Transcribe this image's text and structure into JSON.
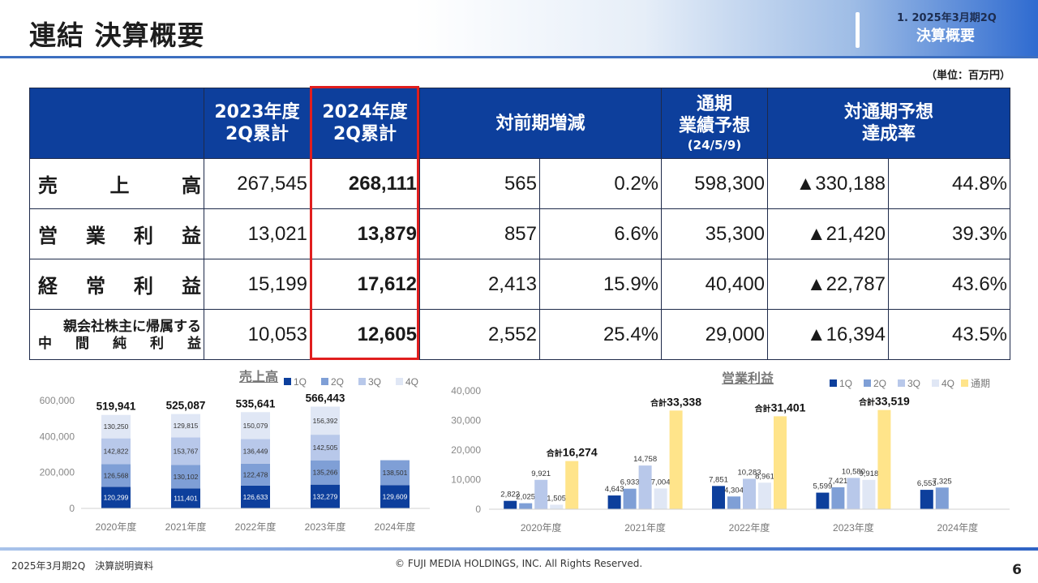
{
  "header": {
    "title": "連結 決算概要",
    "section_no": "1.  2025年3月期2Q",
    "section_title": "決算概要"
  },
  "unit": "（単位：百万円）",
  "table": {
    "columns": {
      "prev_line1": "2023年度",
      "prev_line2": "2Q累計",
      "curr_line1": "2024年度",
      "curr_line2": "2Q累計",
      "change": "対前期増減",
      "forecast_line1": "通期",
      "forecast_line2": "業績予想",
      "forecast_line3": "(24/5/9)",
      "achieve_line1": "対通期予想",
      "achieve_line2": "達成率"
    },
    "rows": [
      {
        "label_chars": [
          "売",
          "上",
          "高"
        ],
        "prev": "267,545",
        "curr": "268,111",
        "diff": "565",
        "pct": "0.2%",
        "forecast": "598,300",
        "remain": "▲330,188",
        "rate": "44.8%"
      },
      {
        "label_chars": [
          "営",
          "業",
          "利",
          "益"
        ],
        "prev": "13,021",
        "curr": "13,879",
        "diff": "857",
        "pct": "6.6%",
        "forecast": "35,300",
        "remain": "▲21,420",
        "rate": "39.3%"
      },
      {
        "label_chars": [
          "経",
          "常",
          "利",
          "益"
        ],
        "prev": "15,199",
        "curr": "17,612",
        "diff": "2,413",
        "pct": "15.9%",
        "forecast": "40,400",
        "remain": "▲22,787",
        "rate": "43.6%"
      },
      {
        "label_line1": "親会社株主に帰属する",
        "label_line2_chars": [
          "中",
          "間",
          "純",
          "利",
          "益"
        ],
        "prev": "10,053",
        "curr": "12,605",
        "diff": "2,552",
        "pct": "25.4%",
        "forecast": "29,000",
        "remain": "▲16,394",
        "rate": "43.5%"
      }
    ]
  },
  "colors": {
    "q1": "#0d3f9c",
    "q2": "#7f9fd6",
    "q3": "#b8c8ea",
    "q4": "#e0e7f5",
    "annual": "#ffe48a"
  },
  "chart_data": [
    {
      "type": "bar",
      "stacked": true,
      "title": "売上高",
      "categories": [
        "2020年度",
        "2021年度",
        "2022年度",
        "2023年度",
        "2024年度"
      ],
      "series": [
        {
          "name": "1Q",
          "values": [
            120299,
            111401,
            126633,
            132279,
            129609
          ]
        },
        {
          "name": "2Q",
          "values": [
            126568,
            130102,
            122478,
            135266,
            138501
          ]
        },
        {
          "name": "3Q",
          "values": [
            142822,
            153767,
            136449,
            142505,
            null
          ]
        },
        {
          "name": "4Q",
          "values": [
            130250,
            129815,
            150079,
            156392,
            null
          ]
        }
      ],
      "value_labels": [
        [
          "120,299",
          "111,401",
          "126,633",
          "132,279",
          "129,609"
        ],
        [
          "126,568",
          "130,102",
          "122,478",
          "135,266",
          "138,501"
        ],
        [
          "142,822",
          "153,767",
          "136,449",
          "142,505",
          ""
        ],
        [
          "130,250",
          "129,815",
          "150,079",
          "156,392",
          ""
        ]
      ],
      "totals": [
        "519,941",
        "525,087",
        "535,641",
        "566,443",
        ""
      ],
      "yticks": [
        "0",
        "200,000",
        "400,000",
        "600,000"
      ],
      "ylim": [
        0,
        600000
      ],
      "legend": "top"
    },
    {
      "type": "bar",
      "title": "営業利益",
      "categories": [
        "2020年度",
        "2021年度",
        "2022年度",
        "2023年度",
        "2024年度"
      ],
      "series": [
        {
          "name": "1Q",
          "values": [
            2822,
            4643,
            7851,
            5599,
            6553
          ]
        },
        {
          "name": "2Q",
          "values": [
            2025,
            6933,
            4304,
            7421,
            7325
          ]
        },
        {
          "name": "3Q",
          "values": [
            9921,
            14758,
            10283,
            10580,
            null
          ]
        },
        {
          "name": "4Q",
          "values": [
            1505,
            7004,
            8961,
            9918,
            null
          ]
        },
        {
          "name": "通期",
          "values": [
            16274,
            33338,
            31401,
            33519,
            null
          ]
        }
      ],
      "value_labels": [
        [
          "2,822",
          "4,643",
          "7,851",
          "5,599",
          "6,553"
        ],
        [
          "2,025",
          "6,933",
          "4,304",
          "7,421",
          "7,325"
        ],
        [
          "9,921",
          "14,758",
          "10,283",
          "10,580",
          ""
        ],
        [
          "1,505",
          "7,004",
          "8,961",
          "9,918",
          ""
        ],
        [
          "",
          "",
          "",
          "",
          ""
        ]
      ],
      "total_prefix": "合計",
      "totals": [
        "16,274",
        "33,338",
        "31,401",
        "33,519",
        ""
      ],
      "yticks": [
        "0",
        "10,000",
        "20,000",
        "30,000",
        "40,000"
      ],
      "ylim": [
        0,
        40000
      ],
      "legend": "top-right"
    }
  ],
  "footer": {
    "left": "2025年3月期2Q　決算説明資料",
    "center": "© FUJI MEDIA HOLDINGS, INC. All Rights Reserved.",
    "page": "6"
  }
}
